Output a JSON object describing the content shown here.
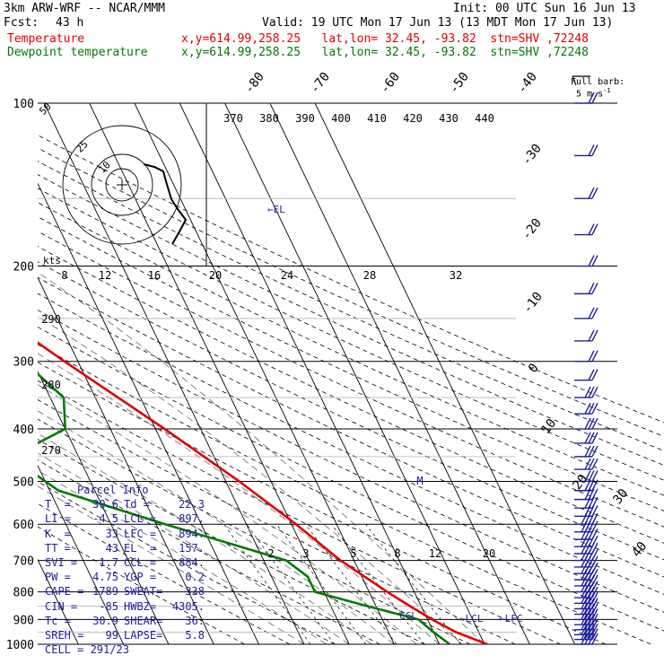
{
  "header": {
    "model": "3km ARW-WRF -- NCAR/MMM",
    "init": "Init: 00 UTC Sun 16 Jun 13",
    "fcst_label": "Fcst:",
    "fcst_value": "43 h",
    "valid": "Valid: 19 UTC Mon 17 Jun 13 (13 MDT Mon 17 Jun 13)"
  },
  "legend": [
    {
      "name": "Temperature",
      "info": "x,y=614.99,258.25   lat,lon= 32.45, -93.82  stn=SHV ,72248",
      "color": "#e00000"
    },
    {
      "name": "Dewpoint temperature",
      "info": "x,y=614.99,258.25   lat,lon= 32.45, -93.82  stn=SHV ,72248",
      "color": "#007a00"
    }
  ],
  "colors": {
    "temperature": "#e00000",
    "dewpoint": "#007a00",
    "wind": "#20209a",
    "isobar": "#000000",
    "hodograph": "#000000"
  },
  "full_barb_label": "Full barb:",
  "full_barb_value": "5 m s",
  "chart_data": [
    {
      "type": "line",
      "title": "skew-T log-p sounding",
      "y_axis": "pressure (hPa), log scale",
      "pressure_labels": [
        "100",
        "200",
        "300",
        "400",
        "500",
        "600",
        "700",
        "800",
        "900",
        "1000"
      ],
      "isotherm_labels": [
        "-80",
        "-70",
        "-60",
        "-50",
        "-40",
        "-30",
        "-20",
        "-10",
        "0",
        "10",
        "20",
        "30",
        "40"
      ],
      "theta_labels": [
        "370",
        "380",
        "390",
        "400",
        "410",
        "420",
        "430",
        "440"
      ],
      "theta_left_labels": [
        "290",
        "280",
        "270"
      ],
      "mixing_ratio_labels": [
        "2",
        "3",
        "5",
        "8",
        "12",
        "20"
      ],
      "markers": [
        "EL",
        "LCL",
        "LFC",
        "CCL"
      ],
      "series": [
        {
          "name": "Temperature",
          "points": [
            [
              100,
              -48
            ],
            [
              150,
              -55.5
            ],
            [
              200,
              -52
            ],
            [
              250,
              -42
            ],
            [
              300,
              -33
            ],
            [
              400,
              -18
            ],
            [
              500,
              -7
            ],
            [
              600,
              1
            ],
            [
              700,
              7
            ],
            [
              800,
              14
            ],
            [
              850,
              17.5
            ],
            [
              900,
              21
            ],
            [
              950,
              25
            ],
            [
              1000,
              30.6
            ]
          ]
        },
        {
          "name": "Dewpoint temperature",
          "points": [
            [
              100,
              -80
            ],
            [
              120,
              -79.5
            ],
            [
              150,
              -81
            ],
            [
              180,
              -76
            ],
            [
              200,
              -70
            ],
            [
              250,
              -60
            ],
            [
              300,
              -42
            ],
            [
              350,
              -37
            ],
            [
              400,
              -40
            ],
            [
              440,
              -52
            ],
            [
              480,
              -52
            ],
            [
              520,
              -48
            ],
            [
              600,
              -28
            ],
            [
              700,
              -5
            ],
            [
              750,
              -2
            ],
            [
              800,
              -2
            ],
            [
              850,
              8
            ],
            [
              900,
              18
            ],
            [
              950,
              20
            ],
            [
              1000,
              22.3
            ]
          ]
        }
      ]
    },
    {
      "type": "scatter",
      "title": "hodograph",
      "xlabel": "kts",
      "speed_labels": [
        "8",
        "12",
        "16",
        "20",
        "24",
        "28",
        "32"
      ],
      "ring_labels": [
        "10",
        "25",
        "50"
      ]
    }
  ],
  "parcel_info": {
    "title": "Parcel Info",
    "rows": [
      [
        "T  =",
        "30.6",
        "Td =",
        "22.3"
      ],
      [
        "LI =",
        "-4.5",
        "LCL =",
        "897."
      ],
      [
        "K  =",
        "33",
        "LFC =",
        "894."
      ],
      [
        "TT =",
        "43",
        "EL  =",
        "157."
      ],
      [
        "SVI =",
        "1.7",
        "CCL =",
        "884."
      ],
      [
        "PW =",
        "4.75",
        "YGP =",
        "0.2"
      ],
      [
        "CAPE =",
        "1789",
        "SWEAT=",
        "338"
      ],
      [
        "CIN =",
        "-85",
        "HWBZ=",
        "4305."
      ],
      [
        "Tc =",
        "30.9",
        "SHEAR=",
        "36."
      ],
      [
        "SREH =",
        "99",
        "LAPSE=",
        "5.8"
      ]
    ],
    "cell": "CELL = 291/23"
  }
}
